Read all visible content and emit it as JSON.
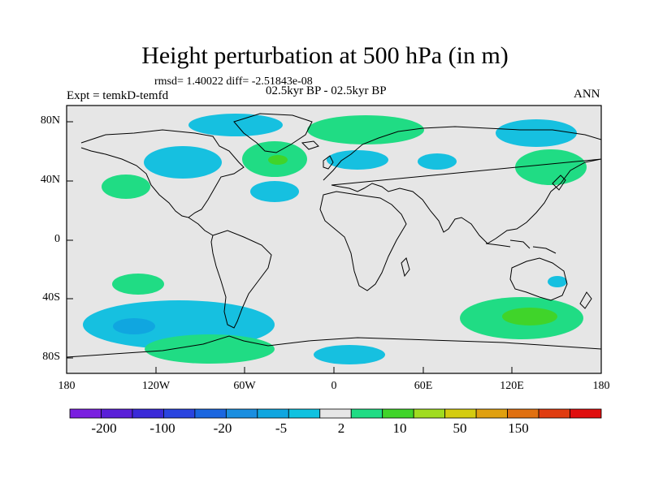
{
  "title": "Height perturbation at 500 hPa (in m)",
  "subtitle_stats": "rmsd= 1.40022 diff= -2.51843e-08",
  "left_label": "Expt = temkD-temfd",
  "center_label": "02.5kyr BP - 02.5kyr BP",
  "right_label": "ANN",
  "y_ticks": [
    "80N",
    "40N",
    "0",
    "40S",
    "80S"
  ],
  "x_ticks": [
    "180",
    "120W",
    "60W",
    "0",
    "60E",
    "120E",
    "180"
  ],
  "colorbar": {
    "colors": [
      "#7a1fe0",
      "#5a1fd8",
      "#3a2ad8",
      "#2a44e0",
      "#1a66e0",
      "#1a8ee0",
      "#10a6e0",
      "#10c2e0",
      "#e6e6e6",
      "#20dc84",
      "#40d42a",
      "#a0dc20",
      "#d4cc10",
      "#e0a010",
      "#e07010",
      "#e03c10",
      "#e00e0e"
    ],
    "labels": [
      "-200",
      "-100",
      "-20",
      "-5",
      "2",
      "10",
      "50",
      "150"
    ]
  },
  "colors": {
    "map_bg": "#e6e6e6",
    "light_blue": "#16c0e0",
    "mid_blue": "#10a6e0",
    "light_green": "#20dc84",
    "mid_green": "#40d42a"
  }
}
